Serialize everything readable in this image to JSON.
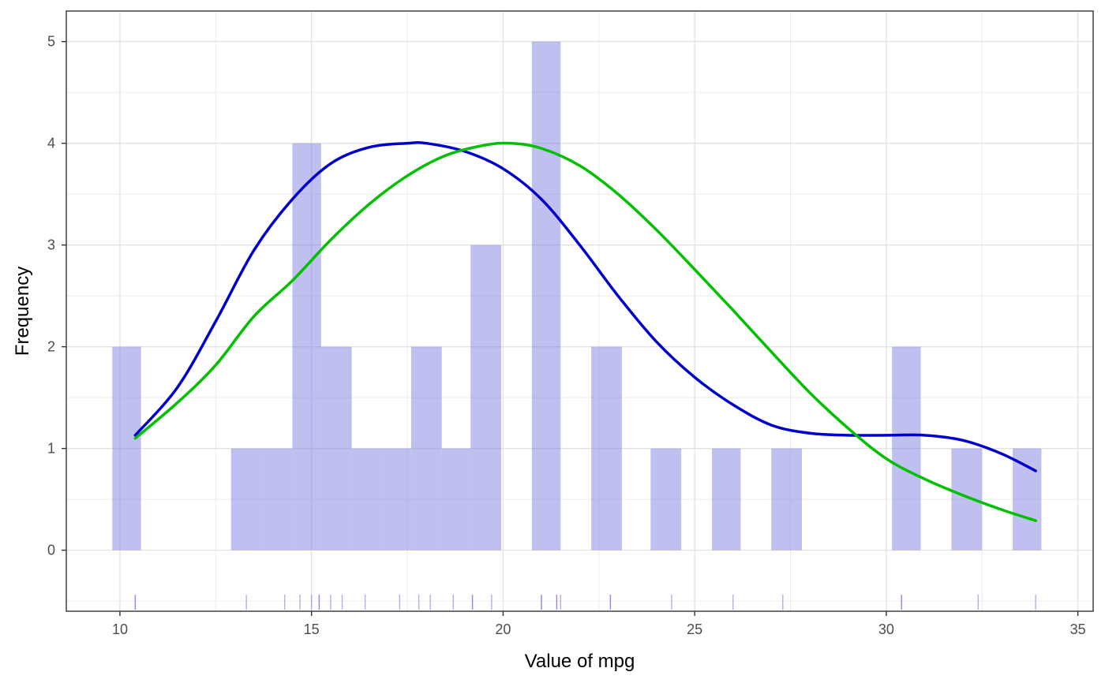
{
  "chart_data": {
    "type": "bar",
    "xlabel": "Value of mpg",
    "ylabel": "Frequency",
    "xlim": [
      8.6,
      35.4
    ],
    "ylim": [
      -0.6,
      5.3
    ],
    "x_ticks": [
      10,
      15,
      20,
      25,
      30,
      35
    ],
    "y_ticks": [
      0,
      1,
      2,
      3,
      4,
      5
    ],
    "x_tick_labels": [
      "10",
      "15",
      "20",
      "25",
      "30",
      "35"
    ],
    "y_tick_labels": [
      "0",
      "1",
      "2",
      "3",
      "4",
      "5"
    ],
    "grid": true,
    "histogram": {
      "bins": [
        {
          "x0": 9.8,
          "x1": 10.55,
          "count": 2
        },
        {
          "x0": 12.9,
          "x1": 13.7,
          "count": 1
        },
        {
          "x0": 13.7,
          "x1": 14.5,
          "count": 1
        },
        {
          "x0": 14.5,
          "x1": 15.25,
          "count": 4
        },
        {
          "x0": 15.25,
          "x1": 16.05,
          "count": 2
        },
        {
          "x0": 16.05,
          "x1": 16.8,
          "count": 1
        },
        {
          "x0": 16.8,
          "x1": 17.6,
          "count": 1
        },
        {
          "x0": 17.6,
          "x1": 18.4,
          "count": 2
        },
        {
          "x0": 18.4,
          "x1": 19.15,
          "count": 1
        },
        {
          "x0": 19.15,
          "x1": 19.95,
          "count": 3
        },
        {
          "x0": 20.75,
          "x1": 21.5,
          "count": 5
        },
        {
          "x0": 22.3,
          "x1": 23.1,
          "count": 2
        },
        {
          "x0": 23.85,
          "x1": 24.65,
          "count": 1
        },
        {
          "x0": 25.45,
          "x1": 26.2,
          "count": 1
        },
        {
          "x0": 27.0,
          "x1": 27.8,
          "count": 1
        },
        {
          "x0": 30.15,
          "x1": 30.9,
          "count": 2
        },
        {
          "x0": 31.7,
          "x1": 32.5,
          "count": 1
        },
        {
          "x0": 33.3,
          "x1": 34.05,
          "count": 1
        }
      ],
      "color": "#7b7be0"
    },
    "series": [
      {
        "color": "#0000cc",
        "x": [
          10.4,
          11.5,
          12.5,
          13.5,
          14.5,
          15.5,
          16.5,
          17.5,
          18.0,
          19.0,
          20.0,
          21.0,
          22.0,
          23.0,
          24.0,
          25.0,
          26.0,
          27.0,
          28.0,
          29.0,
          30.0,
          31.0,
          32.0,
          33.0,
          33.9
        ],
        "y": [
          1.13,
          1.6,
          2.25,
          2.95,
          3.45,
          3.8,
          3.96,
          4.0,
          4.0,
          3.92,
          3.75,
          3.45,
          3.0,
          2.5,
          2.05,
          1.7,
          1.43,
          1.23,
          1.15,
          1.13,
          1.13,
          1.13,
          1.08,
          0.95,
          0.78
        ]
      },
      {
        "color": "#00c000",
        "x": [
          10.4,
          11.5,
          12.5,
          13.5,
          14.5,
          15.5,
          16.5,
          17.5,
          18.5,
          19.5,
          20.2,
          21.0,
          22.0,
          23.0,
          24.0,
          25.0,
          26.0,
          27.0,
          28.0,
          29.0,
          30.0,
          31.0,
          32.0,
          33.0,
          33.9
        ],
        "y": [
          1.1,
          1.45,
          1.82,
          2.3,
          2.65,
          3.05,
          3.4,
          3.68,
          3.88,
          3.98,
          4.0,
          3.95,
          3.78,
          3.5,
          3.15,
          2.76,
          2.36,
          1.95,
          1.55,
          1.2,
          0.9,
          0.7,
          0.54,
          0.4,
          0.29
        ]
      }
    ],
    "rug": {
      "color": "#7b7be0",
      "values": [
        10.4,
        10.4,
        13.3,
        14.3,
        14.7,
        15.0,
        15.2,
        15.2,
        15.5,
        15.8,
        16.4,
        17.3,
        17.8,
        18.1,
        18.7,
        19.2,
        19.2,
        19.7,
        21.0,
        21.0,
        21.4,
        21.4,
        21.5,
        22.8,
        22.8,
        24.4,
        26.0,
        27.3,
        30.4,
        30.4,
        32.4,
        33.9
      ]
    }
  }
}
